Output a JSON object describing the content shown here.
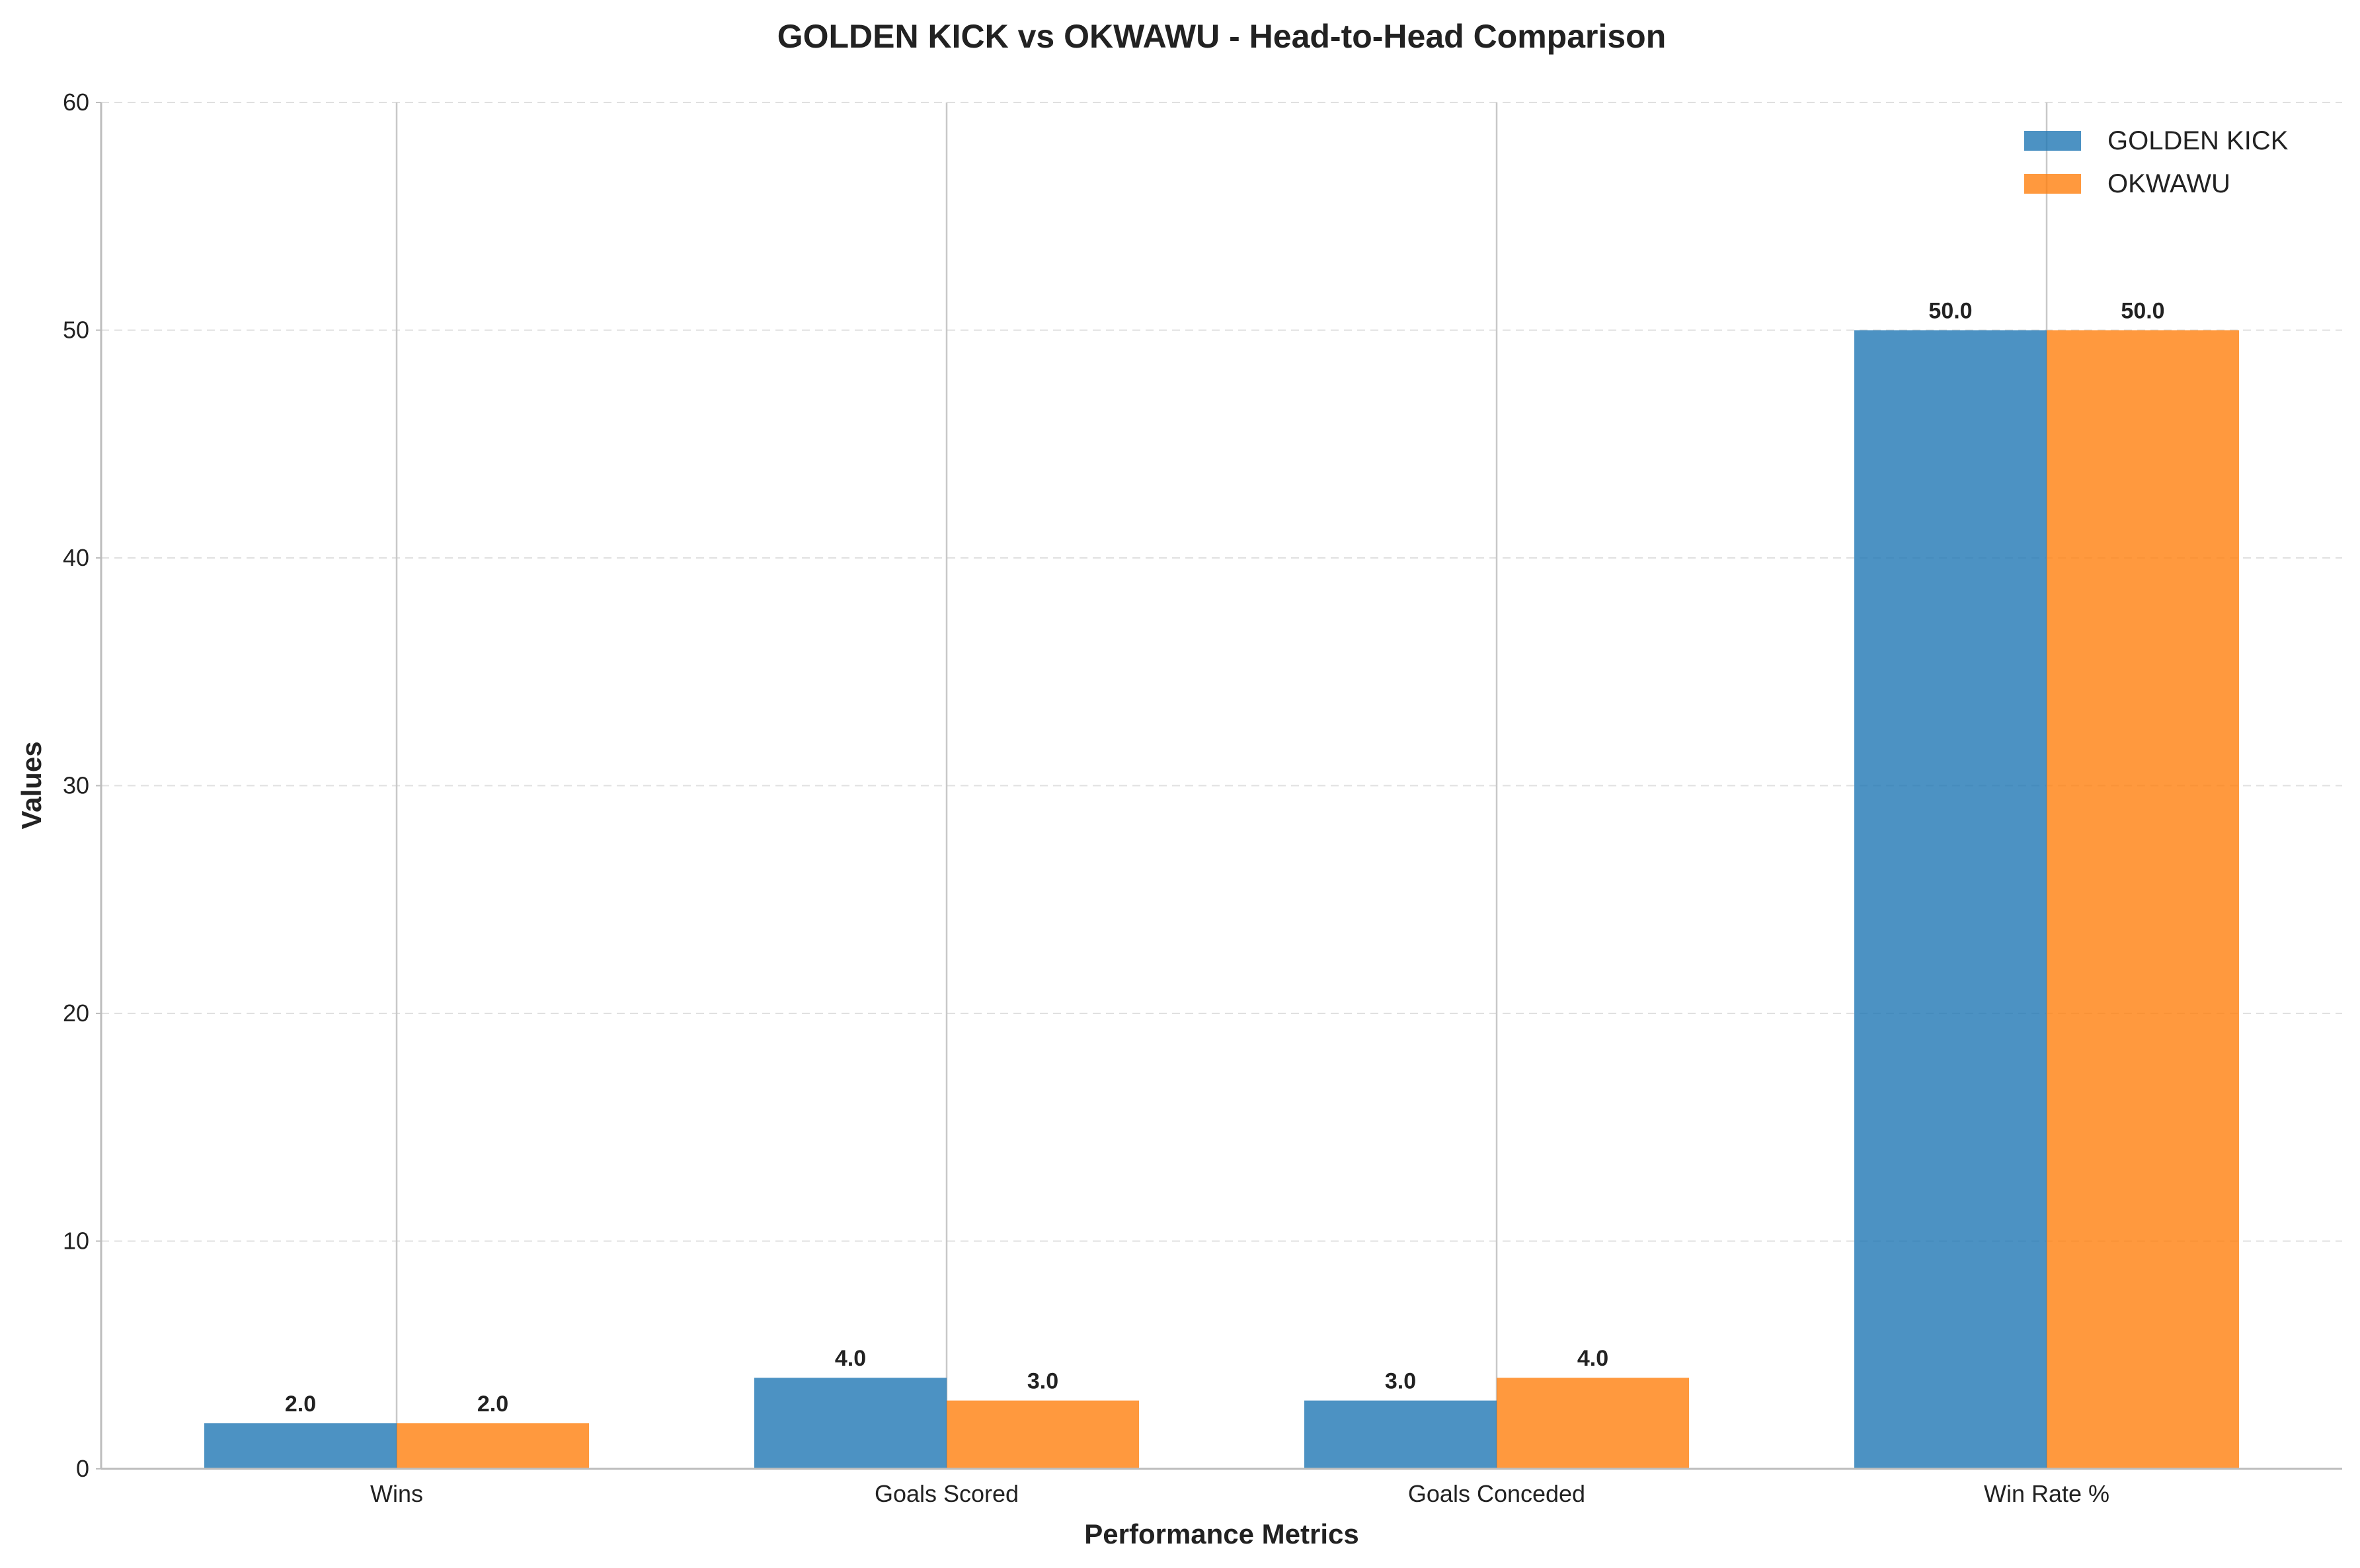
{
  "chart_data": {
    "type": "bar",
    "title": "GOLDEN KICK vs OKWAWU - Head-to-Head Comparison",
    "xlabel": "Performance Metrics",
    "ylabel": "Values",
    "categories": [
      "Wins",
      "Goals Scored",
      "Goals Conceded",
      "Win Rate %"
    ],
    "series": [
      {
        "name": "GOLDEN KICK",
        "color": "#1f77b4",
        "values": [
          2.0,
          4.0,
          3.0,
          50.0
        ],
        "labels": [
          "2.0",
          "4.0",
          "3.0",
          "50.0"
        ]
      },
      {
        "name": "OKWAWU",
        "color": "#ff7f0e",
        "values": [
          2.0,
          3.0,
          4.0,
          50.0
        ],
        "labels": [
          "2.0",
          "3.0",
          "4.0",
          "50.0"
        ]
      }
    ],
    "ylim": [
      0,
      60
    ],
    "yticks": [
      "0",
      "10",
      "20",
      "30",
      "40",
      "50",
      "60"
    ],
    "grid": "y dashed, x solid at category centers",
    "legend_position": "top-right"
  }
}
